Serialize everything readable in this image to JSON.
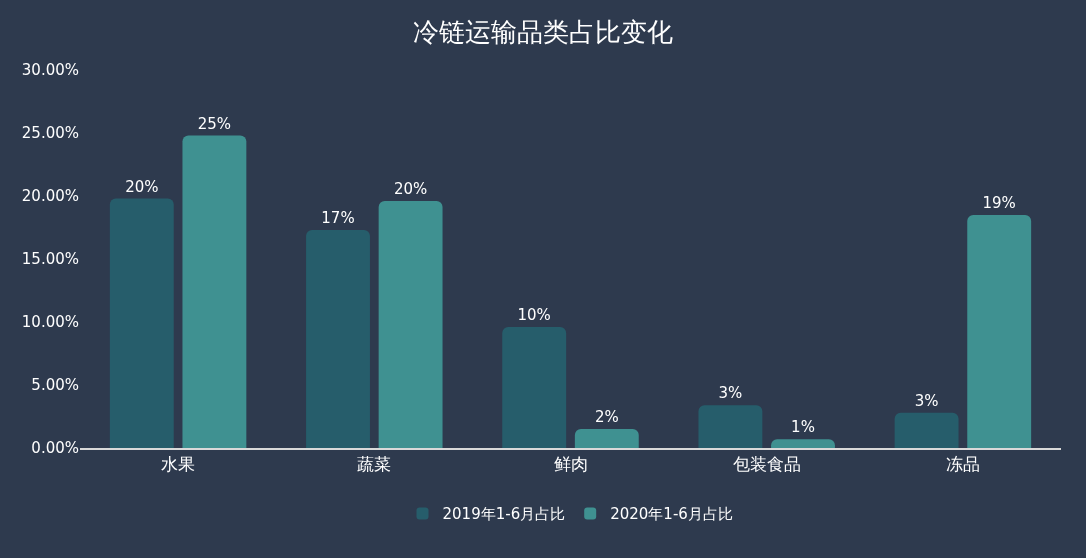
{
  "chart_data": {
    "type": "bar",
    "title": "冷链运输品类占比变化",
    "categories": [
      "水果",
      "蔬菜",
      "鲜肉",
      "包装食品",
      "冻品"
    ],
    "series": [
      {
        "name": "2019年1-6月占比",
        "color": "#265d6b",
        "values": [
          19.8,
          17.3,
          9.6,
          3.4,
          2.8
        ],
        "value_labels": [
          "20%",
          "17%",
          "10%",
          "3%",
          "3%"
        ]
      },
      {
        "name": "2020年1-6月占比",
        "color": "#3f9191",
        "values": [
          24.8,
          19.6,
          1.5,
          0.7,
          18.5
        ],
        "value_labels": [
          "25%",
          "20%",
          "2%",
          "1%",
          "19%"
        ]
      }
    ],
    "ylim": [
      0,
      30
    ],
    "yticks": [
      {
        "value": 0,
        "label": "0.00%"
      },
      {
        "value": 5,
        "label": "5.00%"
      },
      {
        "value": 10,
        "label": "10.00%"
      },
      {
        "value": 15,
        "label": "15.00%"
      },
      {
        "value": 20,
        "label": "20.00%"
      },
      {
        "value": 25,
        "label": "25.00%"
      },
      {
        "value": 30,
        "label": "30.00%"
      }
    ],
    "grid": false,
    "legend": "bottom"
  }
}
